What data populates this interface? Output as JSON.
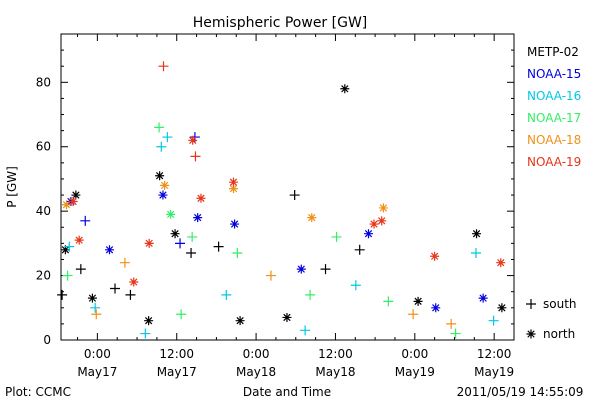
{
  "chart_data": {
    "type": "scatter",
    "title": "Hemispheric Power [GW]",
    "ylabel": "P [GW]",
    "xlabel": "Date and Time",
    "ylim": [
      0,
      95
    ],
    "xlim": [
      "2011-05-16 18:30",
      "2011-05-19 15:00"
    ],
    "yticks": [
      0,
      20,
      40,
      60,
      80
    ],
    "xticks": [
      {
        "time": "2011-05-17 00:00",
        "line1": "0:00",
        "line2": "May17"
      },
      {
        "time": "2011-05-17 12:00",
        "line1": "12:00",
        "line2": "May17"
      },
      {
        "time": "2011-05-18 00:00",
        "line1": "0:00",
        "line2": "May18"
      },
      {
        "time": "2011-05-18 12:00",
        "line1": "12:00",
        "line2": "May18"
      },
      {
        "time": "2011-05-19 00:00",
        "line1": "0:00",
        "line2": "May19"
      },
      {
        "time": "2011-05-19 12:00",
        "line1": "12:00",
        "line2": "May19"
      }
    ],
    "grid": false,
    "legend_position": "right",
    "series": [
      {
        "name": "METP-02",
        "color": "#000000",
        "points": [
          {
            "t": "2011-05-16 18:40",
            "y": 14,
            "h": "south"
          },
          {
            "t": "2011-05-16 19:10",
            "y": 28,
            "h": "north"
          },
          {
            "t": "2011-05-16 20:45",
            "y": 45,
            "h": "north"
          },
          {
            "t": "2011-05-16 21:30",
            "y": 22,
            "h": "south"
          },
          {
            "t": "2011-05-16 23:15",
            "y": 13,
            "h": "north"
          },
          {
            "t": "2011-05-17 02:40",
            "y": 16,
            "h": "south"
          },
          {
            "t": "2011-05-17 05:00",
            "y": 14,
            "h": "south"
          },
          {
            "t": "2011-05-17 07:45",
            "y": 6,
            "h": "north"
          },
          {
            "t": "2011-05-17 09:25",
            "y": 51,
            "h": "north"
          },
          {
            "t": "2011-05-17 11:45",
            "y": 33,
            "h": "north"
          },
          {
            "t": "2011-05-17 14:10",
            "y": 27,
            "h": "south"
          },
          {
            "t": "2011-05-17 18:20",
            "y": 29,
            "h": "south"
          },
          {
            "t": "2011-05-17 21:35",
            "y": 6,
            "h": "north"
          },
          {
            "t": "2011-05-18 05:50",
            "y": 45,
            "h": "south"
          },
          {
            "t": "2011-05-18 04:40",
            "y": 7,
            "h": "north"
          },
          {
            "t": "2011-05-18 10:30",
            "y": 22,
            "h": "south"
          },
          {
            "t": "2011-05-18 13:25",
            "y": 78,
            "h": "north"
          },
          {
            "t": "2011-05-18 15:40",
            "y": 28,
            "h": "south"
          },
          {
            "t": "2011-05-19 00:30",
            "y": 12,
            "h": "north"
          },
          {
            "t": "2011-05-19 09:20",
            "y": 33,
            "h": "north"
          },
          {
            "t": "2011-05-19 13:10",
            "y": 10,
            "h": "north"
          }
        ]
      },
      {
        "name": "NOAA-15",
        "color": "#0000dd",
        "points": [
          {
            "t": "2011-05-16 20:00",
            "y": 43,
            "h": "north"
          },
          {
            "t": "2011-05-16 22:10",
            "y": 37,
            "h": "south"
          },
          {
            "t": "2011-05-17 01:50",
            "y": 28,
            "h": "north"
          },
          {
            "t": "2011-05-17 09:55",
            "y": 45,
            "h": "north"
          },
          {
            "t": "2011-05-17 12:30",
            "y": 30,
            "h": "south"
          },
          {
            "t": "2011-05-17 14:45",
            "y": 63,
            "h": "south"
          },
          {
            "t": "2011-05-17 15:10",
            "y": 38,
            "h": "north"
          },
          {
            "t": "2011-05-17 20:45",
            "y": 36,
            "h": "north"
          },
          {
            "t": "2011-05-18 06:50",
            "y": 22,
            "h": "north"
          },
          {
            "t": "2011-05-18 17:00",
            "y": 33,
            "h": "north"
          },
          {
            "t": "2011-05-19 03:10",
            "y": 10,
            "h": "north"
          },
          {
            "t": "2011-05-19 10:20",
            "y": 13,
            "h": "north"
          }
        ]
      },
      {
        "name": "NOAA-16",
        "color": "#00c8e6",
        "points": [
          {
            "t": "2011-05-16 19:45",
            "y": 29,
            "h": "south"
          },
          {
            "t": "2011-05-16 23:40",
            "y": 10,
            "h": "south"
          },
          {
            "t": "2011-05-17 07:15",
            "y": 2,
            "h": "south"
          },
          {
            "t": "2011-05-17 09:40",
            "y": 60,
            "h": "south"
          },
          {
            "t": "2011-05-17 10:35",
            "y": 63,
            "h": "south"
          },
          {
            "t": "2011-05-17 19:30",
            "y": 14,
            "h": "south"
          },
          {
            "t": "2011-05-18 07:25",
            "y": 3,
            "h": "south"
          },
          {
            "t": "2011-05-18 15:05",
            "y": 17,
            "h": "south"
          },
          {
            "t": "2011-05-19 09:15",
            "y": 27,
            "h": "south"
          },
          {
            "t": "2011-05-19 11:55",
            "y": 6,
            "h": "south"
          }
        ]
      },
      {
        "name": "NOAA-17",
        "color": "#33ee66",
        "points": [
          {
            "t": "2011-05-16 19:30",
            "y": 20,
            "h": "south"
          },
          {
            "t": "2011-05-17 09:20",
            "y": 66,
            "h": "south"
          },
          {
            "t": "2011-05-17 11:05",
            "y": 39,
            "h": "north"
          },
          {
            "t": "2011-05-17 12:40",
            "y": 8,
            "h": "south"
          },
          {
            "t": "2011-05-17 14:20",
            "y": 32,
            "h": "south"
          },
          {
            "t": "2011-05-17 21:10",
            "y": 27,
            "h": "south"
          },
          {
            "t": "2011-05-18 08:10",
            "y": 14,
            "h": "south"
          },
          {
            "t": "2011-05-18 12:10",
            "y": 32,
            "h": "south"
          },
          {
            "t": "2011-05-18 20:00",
            "y": 12,
            "h": "south"
          },
          {
            "t": "2011-05-19 06:10",
            "y": 2,
            "h": "south"
          }
        ]
      },
      {
        "name": "NOAA-18",
        "color": "#f09018",
        "points": [
          {
            "t": "2011-05-16 19:20",
            "y": 42,
            "h": "north"
          },
          {
            "t": "2011-05-16 23:50",
            "y": 8,
            "h": "south"
          },
          {
            "t": "2011-05-17 04:10",
            "y": 24,
            "h": "south"
          },
          {
            "t": "2011-05-17 10:10",
            "y": 48,
            "h": "north"
          },
          {
            "t": "2011-05-17 20:35",
            "y": 47,
            "h": "north"
          },
          {
            "t": "2011-05-18 02:15",
            "y": 20,
            "h": "south"
          },
          {
            "t": "2011-05-18 08:25",
            "y": 38,
            "h": "north"
          },
          {
            "t": "2011-05-18 19:15",
            "y": 41,
            "h": "north"
          },
          {
            "t": "2011-05-18 23:45",
            "y": 8,
            "h": "south"
          },
          {
            "t": "2011-05-19 05:30",
            "y": 5,
            "h": "south"
          }
        ]
      },
      {
        "name": "NOAA-19",
        "color": "#e83418",
        "points": [
          {
            "t": "2011-05-16 20:20",
            "y": 43,
            "h": "north"
          },
          {
            "t": "2011-05-16 21:15",
            "y": 31,
            "h": "north"
          },
          {
            "t": "2011-05-17 05:30",
            "y": 18,
            "h": "north"
          },
          {
            "t": "2011-05-17 07:50",
            "y": 30,
            "h": "north"
          },
          {
            "t": "2011-05-17 10:00",
            "y": 85,
            "h": "south"
          },
          {
            "t": "2011-05-17 14:25",
            "y": 62,
            "h": "north"
          },
          {
            "t": "2011-05-17 14:50",
            "y": 57,
            "h": "south"
          },
          {
            "t": "2011-05-17 15:40",
            "y": 44,
            "h": "north"
          },
          {
            "t": "2011-05-17 20:35",
            "y": 49,
            "h": "north"
          },
          {
            "t": "2011-05-18 17:50",
            "y": 36,
            "h": "north"
          },
          {
            "t": "2011-05-18 19:00",
            "y": 37,
            "h": "north"
          },
          {
            "t": "2011-05-19 03:00",
            "y": 26,
            "h": "north"
          },
          {
            "t": "2011-05-19 13:00",
            "y": 24,
            "h": "north"
          }
        ]
      }
    ],
    "marker_legend": [
      {
        "symbol": "+",
        "label": "south"
      },
      {
        "symbol": "*",
        "label": "north"
      }
    ]
  },
  "footer": {
    "left": "Plot: CCMC",
    "center": "Date and Time",
    "right": "2011/05/19 14:55:09"
  }
}
